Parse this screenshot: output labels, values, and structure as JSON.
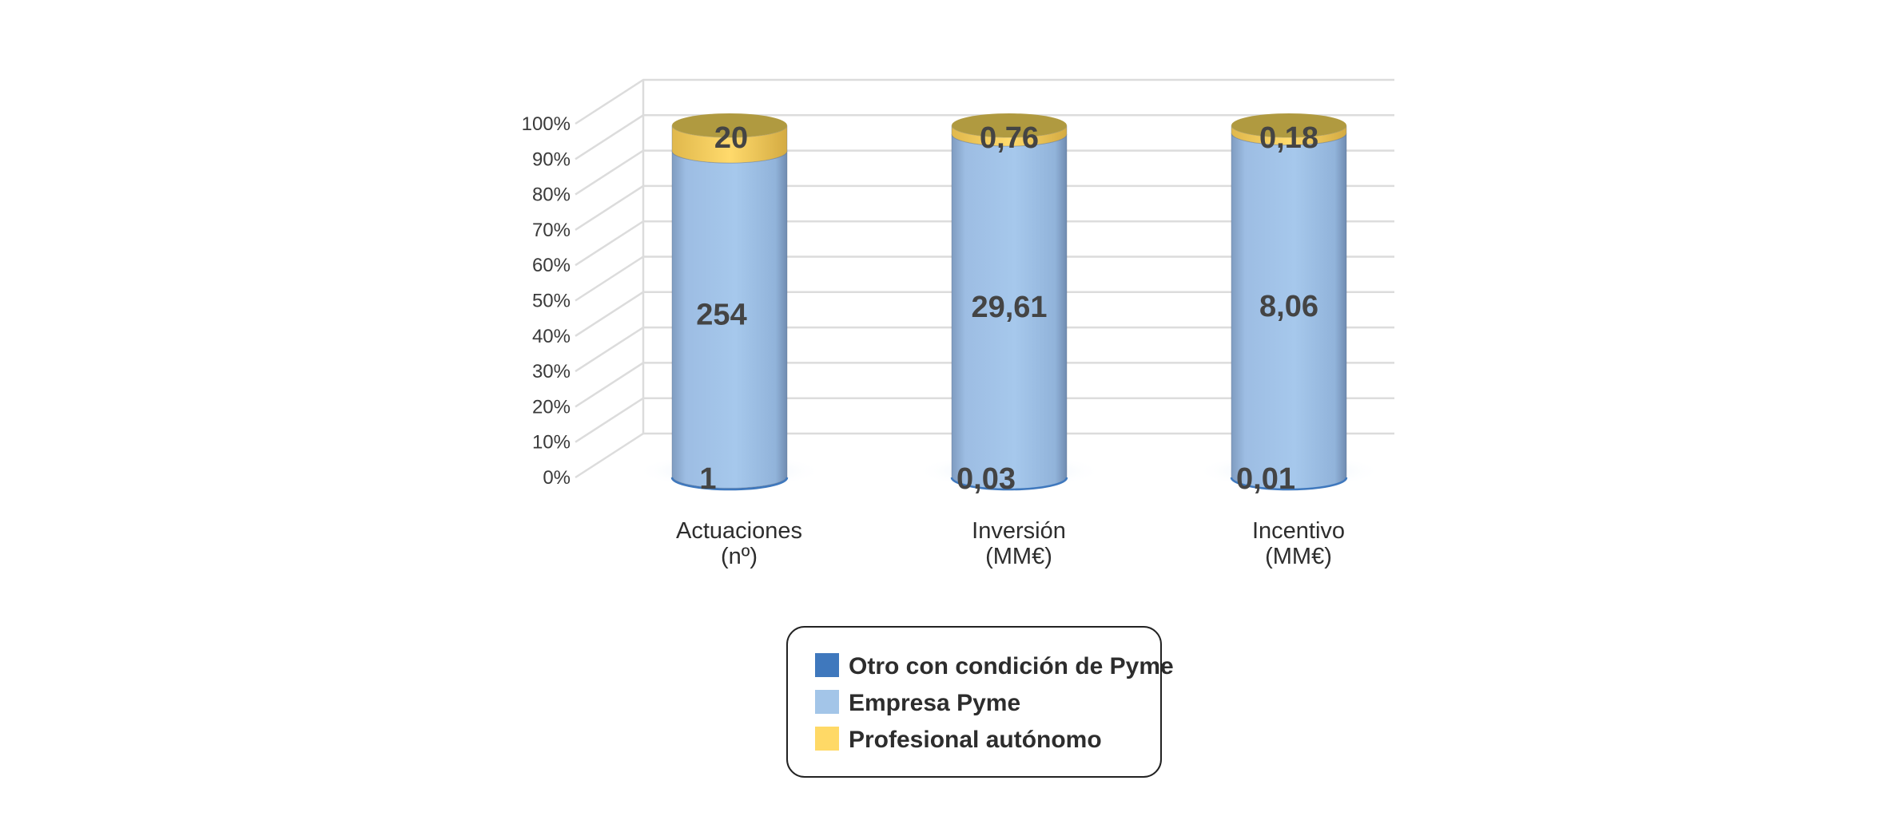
{
  "chart_data": {
    "type": "bar",
    "stacked": "percent",
    "shape": "3d-cylinder",
    "title": "",
    "xlabel": "",
    "ylabel": "",
    "ylim": [
      0,
      100
    ],
    "y_tick_labels": [
      "0%",
      "10%",
      "20%",
      "30%",
      "40%",
      "50%",
      "60%",
      "70%",
      "80%",
      "90%",
      "100%"
    ],
    "grid": true,
    "legend_position": "bottom",
    "categories": [
      {
        "line1": "Actuaciones",
        "line2": "(nº)"
      },
      {
        "line1": "Inversión",
        "line2": "(MM€)"
      },
      {
        "line1": "Incentivo",
        "line2": "(MM€)"
      }
    ],
    "series": [
      {
        "name": "Otro con condición de Pyme",
        "color": "#3f78bd",
        "values": [
          1,
          0.03,
          0.01
        ],
        "labels": [
          "1",
          "0,03",
          "0,01"
        ]
      },
      {
        "name": "Empresa Pyme",
        "color": "#a3c5e8",
        "values": [
          254,
          29.61,
          8.06
        ],
        "labels": [
          "254",
          "29,61",
          "8,06"
        ]
      },
      {
        "name": "Profesional autónomo",
        "color": "#ffd966",
        "values": [
          20,
          0.76,
          0.18
        ],
        "labels": [
          "20",
          "0,76",
          "0,18"
        ]
      }
    ]
  }
}
